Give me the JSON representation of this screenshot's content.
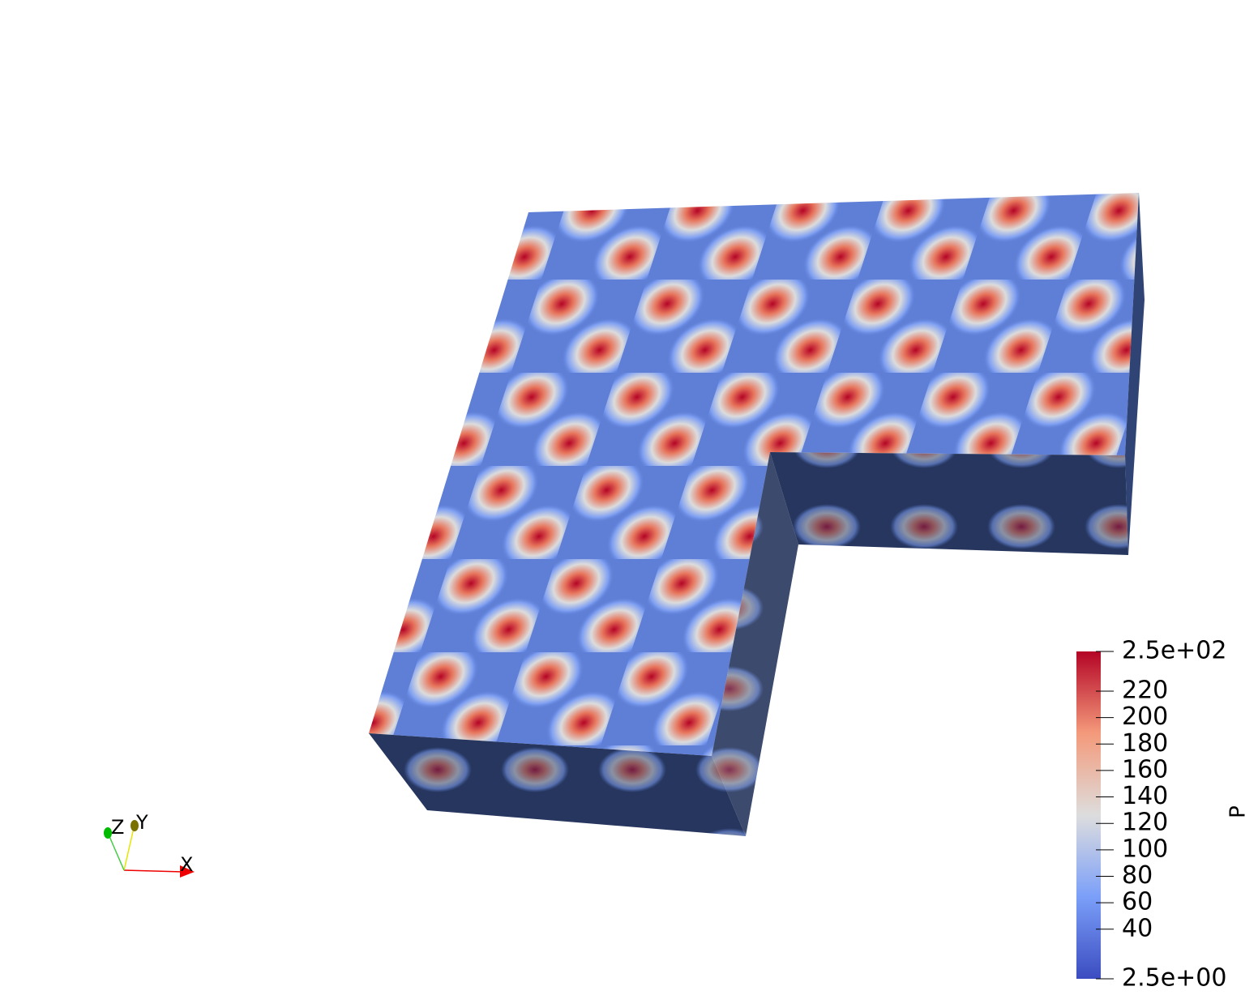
{
  "colorbar": {
    "title": "P",
    "range": [
      2.5,
      250
    ],
    "ticks": [
      {
        "value": 250,
        "label": "2.5e+02"
      },
      220,
      200,
      180,
      160,
      140,
      120,
      100,
      80,
      60,
      40,
      {
        "value": 2.5,
        "label": "2.5e+00"
      }
    ]
  },
  "axes": {
    "x": "X",
    "y": "Y",
    "z": "Z"
  }
}
